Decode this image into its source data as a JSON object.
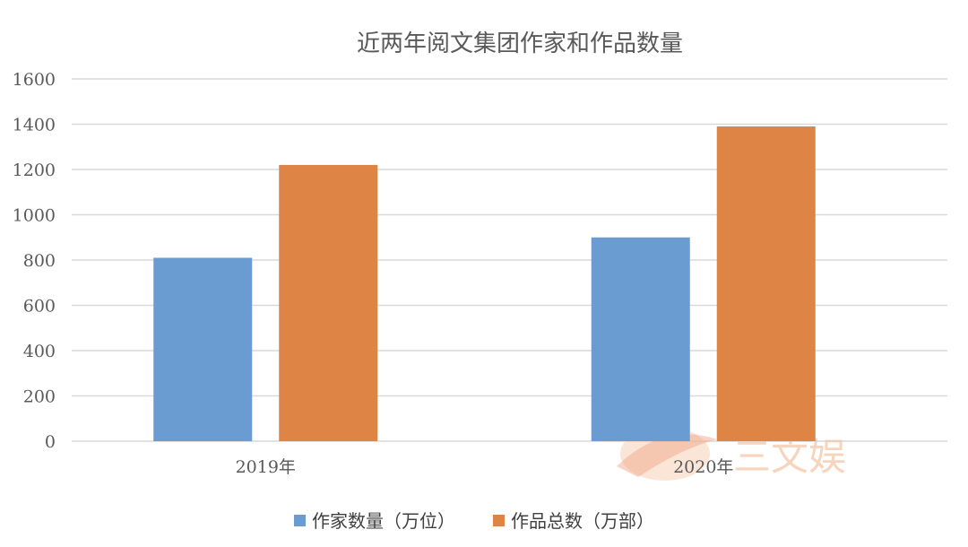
{
  "chart_data": {
    "type": "bar",
    "title": "近两年阅文集团作家和作品数量",
    "categories": [
      "2019年",
      "2020年"
    ],
    "series": [
      {
        "name": "作家数量（万位）",
        "values": [
          810,
          900
        ],
        "color": "#6a9bd1"
      },
      {
        "name": "作品总数（万部）",
        "values": [
          1220,
          1390
        ],
        "color": "#de8444"
      }
    ],
    "ylim": [
      0,
      1600
    ],
    "yticks": [
      0,
      200,
      400,
      600,
      800,
      1000,
      1200,
      1400,
      1600
    ],
    "grid": true,
    "legend": "bottom"
  },
  "watermark": {
    "text": "三文娱",
    "color": "#f4c6a6"
  }
}
